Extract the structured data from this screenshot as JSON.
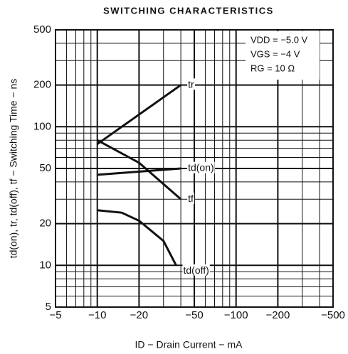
{
  "chart_data": {
    "type": "line",
    "title": "SWITCHING CHARACTERISTICS",
    "x_label": "ID − Drain Current − mA",
    "y_label": "td(on), tr, td(off), tf − Switching Time − ns",
    "log_x": true,
    "log_y": true,
    "grid": true,
    "xlim": [
      -5,
      -500
    ],
    "ylim": [
      5,
      500
    ],
    "xticks": [
      {
        "value": -5,
        "label": "−5"
      },
      {
        "value": -10,
        "label": "−10"
      },
      {
        "value": -20,
        "label": "−20"
      },
      {
        "value": -50,
        "label": "−50"
      },
      {
        "value": -100,
        "label": "−100"
      },
      {
        "value": -200,
        "label": "−200"
      },
      {
        "value": -500,
        "label": "−500"
      }
    ],
    "yticks": [
      5,
      10,
      20,
      50,
      100,
      200,
      500
    ],
    "xminor": [
      -6,
      -7,
      -8,
      -9,
      -30,
      -40,
      -60,
      -70,
      -80,
      -90,
      -300,
      -400
    ],
    "yminor": [
      6,
      7,
      8,
      9,
      30,
      40,
      60,
      70,
      80,
      90,
      300,
      400
    ],
    "annotations": [
      "VDD = −5.0 V",
      "VGS = −4 V",
      "RG = 10 Ω"
    ],
    "series": [
      {
        "name": "tr",
        "color": "#111111",
        "x": [
          -10,
          -40
        ],
        "values": [
          75,
          200
        ]
      },
      {
        "name": "td(on)",
        "color": "#111111",
        "x": [
          -10,
          -40
        ],
        "values": [
          45,
          50
        ]
      },
      {
        "name": "tf",
        "color": "#111111",
        "x": [
          -10,
          -20,
          -40
        ],
        "values": [
          80,
          55,
          30
        ]
      },
      {
        "name": "td(off)",
        "color": "#111111",
        "x": [
          -10,
          -15,
          -20,
          -30,
          -37
        ],
        "values": [
          25,
          24,
          21,
          15,
          10
        ]
      }
    ]
  }
}
